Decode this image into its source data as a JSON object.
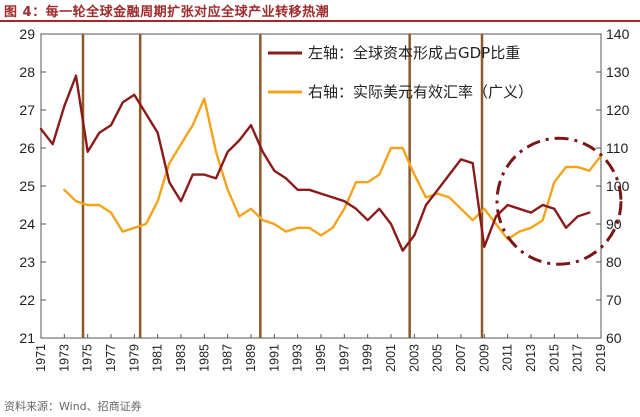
{
  "title": "图 4：每一轮全球金融周期扩张对应全球产业转移热潮",
  "source": "资料来源：Wind、招商证券",
  "colors": {
    "left_series": "#8b1a1a",
    "right_series": "#f5a31a",
    "vlines": "#8b5a2b",
    "circle": "#7a1515",
    "title": "#9e2a2b"
  },
  "chart_data": {
    "type": "line",
    "left_axis": {
      "ylim": [
        21,
        29
      ],
      "ticks": [
        21,
        22,
        23,
        24,
        25,
        26,
        27,
        28,
        29
      ]
    },
    "right_axis": {
      "ylim": [
        60,
        140
      ],
      "ticks": [
        60,
        70,
        80,
        90,
        100,
        110,
        120,
        130,
        140
      ]
    },
    "x_ticks": [
      1971,
      1973,
      1975,
      1977,
      1979,
      1981,
      1983,
      1985,
      1987,
      1989,
      1991,
      1993,
      1995,
      1997,
      1999,
      2001,
      2003,
      2005,
      2007,
      2009,
      2011,
      2013,
      2015,
      2017,
      2019
    ],
    "xlim": [
      1971,
      2019
    ],
    "series": [
      {
        "name": "左轴：全球资本形成占GDP比重",
        "axis": "left",
        "x": [
          1971,
          1972,
          1973,
          1974,
          1975,
          1976,
          1977,
          1978,
          1979,
          1980,
          1981,
          1982,
          1983,
          1984,
          1985,
          1986,
          1987,
          1988,
          1989,
          1990,
          1991,
          1992,
          1993,
          1994,
          1995,
          1996,
          1997,
          1998,
          1999,
          2000,
          2001,
          2002,
          2003,
          2004,
          2005,
          2006,
          2007,
          2008,
          2009,
          2010,
          2011,
          2012,
          2013,
          2014,
          2015,
          2016,
          2017,
          2018
        ],
        "values": [
          26.5,
          26.1,
          27.1,
          27.9,
          25.9,
          26.4,
          26.6,
          27.2,
          27.4,
          26.9,
          26.4,
          25.1,
          24.6,
          25.3,
          25.3,
          25.2,
          25.9,
          26.2,
          26.6,
          25.9,
          25.4,
          25.2,
          24.9,
          24.9,
          24.8,
          24.7,
          24.6,
          24.4,
          24.1,
          24.4,
          24.0,
          23.3,
          23.7,
          24.5,
          24.9,
          25.3,
          25.7,
          25.6,
          23.4,
          24.2,
          24.5,
          24.4,
          24.3,
          24.5,
          24.4,
          23.9,
          24.2,
          24.3
        ]
      },
      {
        "name": "右轴：实际美元有效汇率（广义）",
        "axis": "right",
        "x": [
          1973,
          1974,
          1975,
          1976,
          1977,
          1978,
          1979,
          1980,
          1981,
          1982,
          1983,
          1984,
          1985,
          1986,
          1987,
          1988,
          1989,
          1990,
          1991,
          1992,
          1993,
          1994,
          1995,
          1996,
          1997,
          1998,
          1999,
          2000,
          2001,
          2002,
          2003,
          2004,
          2005,
          2006,
          2007,
          2008,
          2009,
          2010,
          2011,
          2012,
          2013,
          2014,
          2015,
          2016,
          2017,
          2018,
          2019
        ],
        "values": [
          99,
          96,
          95,
          95,
          93,
          88,
          89,
          90,
          96,
          106,
          111,
          116,
          123,
          109,
          99,
          92,
          94,
          91,
          90,
          88,
          89,
          89,
          87,
          89,
          94,
          101,
          101,
          103,
          110,
          110,
          103,
          97,
          98,
          97,
          94,
          91,
          94,
          90,
          86,
          88,
          89,
          91,
          101,
          105,
          105,
          104,
          108
        ]
      }
    ],
    "vertical_lines": [
      1974.6,
      1979.5,
      1989.8,
      2002.6,
      2008.8
    ],
    "annotation": {
      "shape": "dashdot-ellipse",
      "x_center": 2015.4,
      "y_center_left": 24.6
    }
  }
}
